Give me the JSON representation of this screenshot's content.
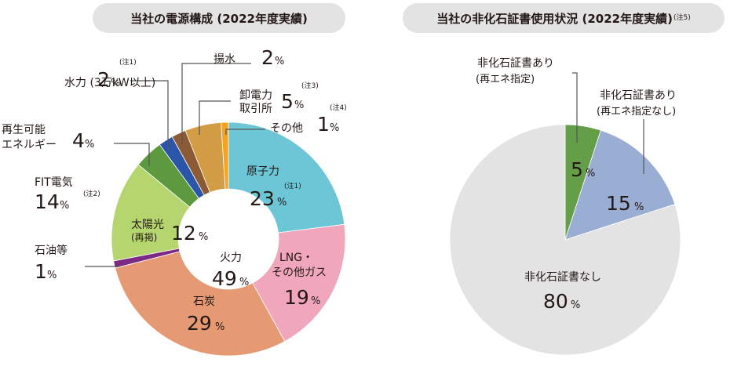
{
  "titles": {
    "left": "当社の電源構成 (2022年度実績)",
    "right": "当社の非化石証書使用状況 (2022年度実績)",
    "right_note": "(注5)"
  },
  "chart_data": [
    {
      "type": "pie",
      "title": "当社の電源構成 (2022年度実績)",
      "unit": "%",
      "inner": {
        "name": "火力",
        "value": 49,
        "slices": [
          {
            "label": "原子力",
            "note": "(注1)",
            "value": 23,
            "color": "#6cc6d5"
          },
          {
            "label": "LNG・その他ガス",
            "value": 19,
            "color": "#f0a7bc"
          },
          {
            "label": "石炭",
            "value": 29,
            "color": "#e59a73"
          },
          {
            "label": "石油等",
            "value": 1,
            "color": "#7d2a84"
          },
          {
            "label": "太陽光 (再掲)",
            "value": 12,
            "color": "#b5d56f"
          },
          {
            "label": "FIT電気",
            "note": "(注2)",
            "value": 14,
            "color": "#b5d56f"
          },
          {
            "label": "再生可能エネルギー",
            "value": 4,
            "color": "#5d9a3f"
          },
          {
            "label": "水力 (3万kW以上)",
            "note": "(注1)",
            "value": 2,
            "color": "#2a55a8"
          },
          {
            "label": "揚水",
            "value": 2,
            "color": "#8c5a34"
          },
          {
            "label": "卸電力取引所",
            "note": "(注3)",
            "value": 5,
            "color": "#d39d45"
          },
          {
            "label": "その他",
            "note": "(注4)",
            "value": 1,
            "color": "#f5a21c"
          }
        ]
      }
    },
    {
      "type": "pie",
      "title": "当社の非化石証書使用状況 (2022年度実績)",
      "unit": "%",
      "slices": [
        {
          "label": "非化石証書あり (再エネ指定)",
          "value": 5,
          "color": "#649e48"
        },
        {
          "label": "非化石証書あり (再エネ指定なし)",
          "value": 15,
          "color": "#9aaed3"
        },
        {
          "label": "非化石証書なし",
          "value": 80,
          "color": "#e3e3e3"
        }
      ]
    }
  ]
}
